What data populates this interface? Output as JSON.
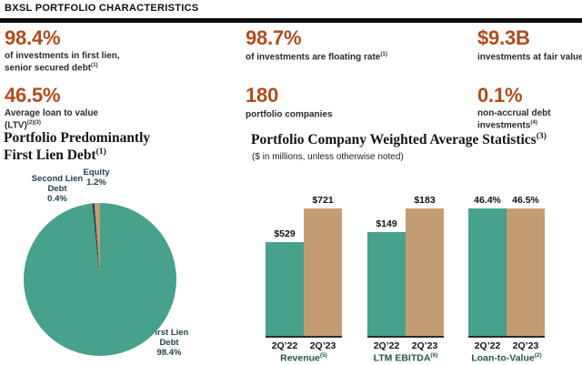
{
  "header": {
    "title": "BXSL PORTFOLIO CHARACTERISTICS"
  },
  "stats": [
    {
      "value": "98.4%",
      "caption": "of investments in first lien, senior secured debt",
      "sup": "(1)"
    },
    {
      "value": "98.7%",
      "caption": "of investments are floating rate",
      "sup": "(1)"
    },
    {
      "value": "$9.3B",
      "caption": "investments at fair value",
      "sup": ""
    },
    {
      "value": "46.5%",
      "caption": "Average loan to value (LTV)",
      "sup": "(2)(3)"
    },
    {
      "value": "180",
      "caption": "portfolio companies",
      "sup": ""
    },
    {
      "value": "0.1%",
      "caption": "non-accrual debt investments",
      "sup": "(4)"
    }
  ],
  "chart_data": [
    {
      "type": "pie",
      "title": "Portfolio Predominantly First Lien Debt(1)",
      "title_line1": "Portfolio Predominantly",
      "title_line2": "First Lien Debt",
      "title_sup": "(1)",
      "legend_position": "none",
      "slices": [
        {
          "label": "First Lien Debt",
          "value": 98.4,
          "display": "98.4%",
          "color": "#47a18b"
        },
        {
          "label": "Second Lien Debt",
          "value": 0.4,
          "display": "0.4%",
          "color": "#1d4253"
        },
        {
          "label": "Equity",
          "value": 1.2,
          "display": "1.2%",
          "color": "#c49c74"
        }
      ]
    },
    {
      "type": "bar",
      "title": "Portfolio Company Weighted Average Statistics",
      "title_sup": "(3)",
      "subtitle": "($ in millions, unless otherwise noted)",
      "categories": [
        "2Q’22",
        "2Q’23"
      ],
      "colors": [
        "#47a18b",
        "#c49c74"
      ],
      "grid": false,
      "legend_position": "none",
      "groups": [
        {
          "label": "Revenue",
          "sup": "(5)",
          "values": [
            529,
            721
          ],
          "display": [
            "$529",
            "$721"
          ]
        },
        {
          "label": "LTM EBITDA",
          "sup": "(6)",
          "values": [
            149,
            183
          ],
          "display": [
            "$149",
            "$183"
          ]
        },
        {
          "label": "Loan-to-Value",
          "sup": "(2)",
          "values": [
            46.4,
            46.5
          ],
          "display": [
            "46.4%",
            "46.5%"
          ]
        }
      ]
    }
  ]
}
